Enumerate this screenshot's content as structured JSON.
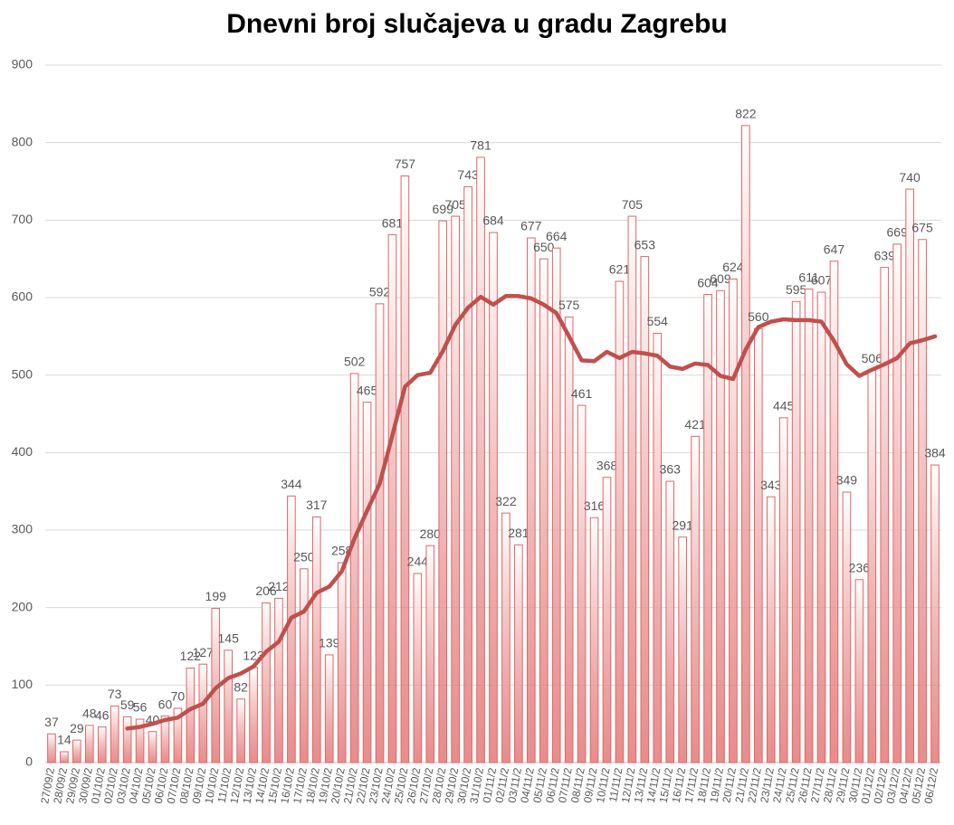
{
  "chart_data": {
    "type": "bar",
    "title": "Dnevni broj slučajeva u gradu Zagrebu",
    "categories": [
      "27/09/2",
      "28/09/2",
      "29/09/2",
      "30/09/2",
      "01/10/2",
      "02/10/2",
      "03/10/2",
      "04/10/2",
      "05/10/2",
      "06/10/2",
      "07/10/2",
      "08/10/2",
      "09/10/2",
      "10/10/2",
      "11/10/2",
      "12/10/2",
      "13/10/2",
      "14/10/2",
      "15/10/2",
      "16/10/2",
      "17/10/2",
      "18/10/2",
      "19/10/2",
      "20/10/2",
      "21/10/2",
      "22/10/2",
      "23/10/2",
      "24/10/2",
      "25/10/2",
      "26/10/2",
      "27/10/2",
      "28/10/2",
      "29/10/2",
      "30/10/2",
      "31/10/2",
      "01/11/2",
      "02/11/2",
      "03/11/2",
      "04/11/2",
      "05/11/2",
      "06/11/2",
      "07/11/2",
      "08/11/2",
      "09/11/2",
      "10/11/2",
      "11/11/2",
      "12/11/2",
      "13/11/2",
      "14/11/2",
      "15/11/2",
      "16/11/2",
      "17/11/2",
      "18/11/2",
      "19/11/2",
      "20/11/2",
      "21/11/2",
      "22/11/2",
      "23/11/2",
      "24/11/2",
      "25/11/2",
      "26/11/2",
      "27/11/2",
      "28/11/2",
      "29/11/2",
      "30/11/2",
      "01/12/2",
      "02/12/2",
      "03/12/2",
      "04/12/2",
      "05/12/2",
      "06/12/2"
    ],
    "series": [
      {
        "type": "bar",
        "color": "#e06666",
        "data_labels": true,
        "values": [
          37,
          14,
          29,
          48,
          46,
          73,
          59,
          56,
          40,
          60,
          70,
          122,
          127,
          199,
          145,
          82,
          123,
          206,
          212,
          344,
          250,
          317,
          139,
          258,
          502,
          465,
          592,
          681,
          757,
          244,
          280,
          699,
          705,
          743,
          781,
          684,
          322,
          281,
          677,
          650,
          664,
          575,
          461,
          316,
          368,
          621,
          705,
          653,
          554,
          363,
          291,
          421,
          604,
          609,
          624,
          822,
          560,
          343,
          445,
          595,
          611,
          607,
          647,
          349,
          236,
          506,
          639,
          669,
          740,
          675,
          384
        ]
      },
      {
        "type": "line",
        "color": "#c0504d",
        "values": [
          null,
          null,
          null,
          null,
          null,
          null,
          44,
          46,
          50,
          55,
          58,
          69,
          76,
          96,
          109,
          115,
          124,
          143,
          156,
          187,
          195,
          219,
          227,
          247,
          289,
          325,
          360,
          422,
          485,
          500,
          503,
          531,
          565,
          587,
          601,
          591,
          602,
          602,
          599,
          591,
          580,
          550,
          519,
          518,
          530,
          522,
          530,
          528,
          525,
          511,
          508,
          515,
          513,
          499,
          495,
          533,
          562,
          569,
          572,
          571,
          571,
          569,
          544,
          514,
          499,
          507,
          514,
          522,
          541,
          545,
          550
        ]
      }
    ],
    "ylim": [
      0,
      900
    ],
    "yticks": [
      0,
      100,
      200,
      300,
      400,
      500,
      600,
      700,
      800,
      900
    ],
    "grid": true
  }
}
